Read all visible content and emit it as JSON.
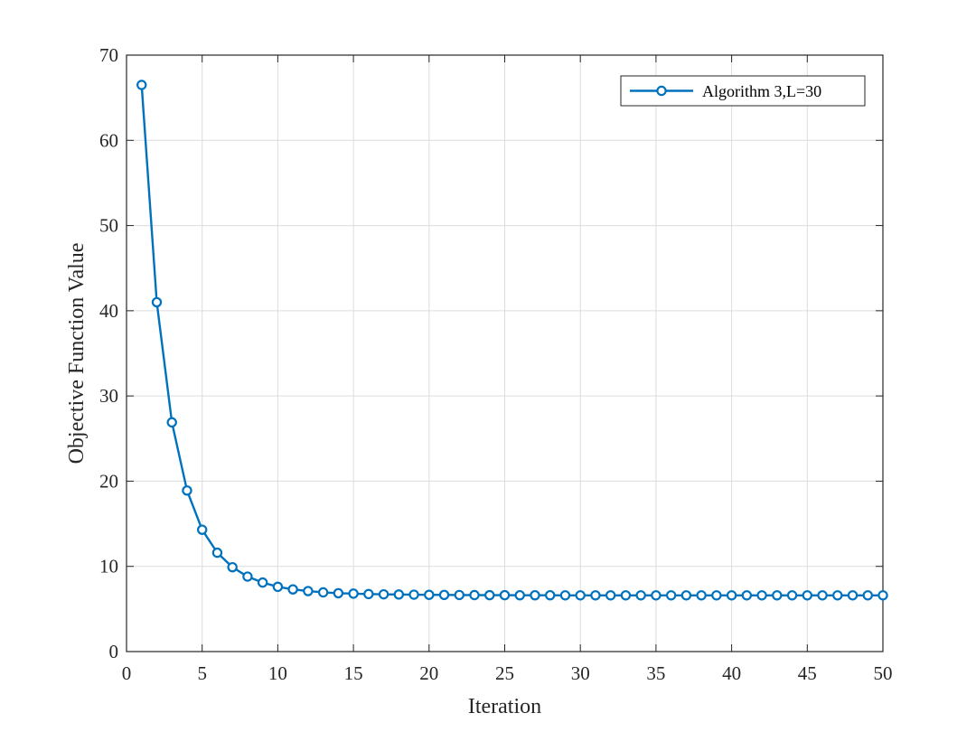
{
  "chart_data": {
    "type": "line",
    "xlabel": "Iteration",
    "ylabel": "Objective Function Value",
    "xlim": [
      0,
      50
    ],
    "ylim": [
      0,
      70
    ],
    "xticks": [
      0,
      5,
      10,
      15,
      20,
      25,
      30,
      35,
      40,
      45,
      50
    ],
    "yticks": [
      0,
      10,
      20,
      30,
      40,
      50,
      60,
      70
    ],
    "grid": true,
    "legend_position": "top-right",
    "series": [
      {
        "name": "Algorithm 3,L=30",
        "color": "#0072BD",
        "marker": "circle",
        "x": [
          1,
          2,
          3,
          4,
          5,
          6,
          7,
          8,
          9,
          10,
          11,
          12,
          13,
          14,
          15,
          16,
          17,
          18,
          19,
          20,
          21,
          22,
          23,
          24,
          25,
          26,
          27,
          28,
          29,
          30,
          31,
          32,
          33,
          34,
          35,
          36,
          37,
          38,
          39,
          40,
          41,
          42,
          43,
          44,
          45,
          46,
          47,
          48,
          49,
          50
        ],
        "values": [
          66.5,
          41.0,
          26.9,
          18.9,
          14.3,
          11.6,
          9.9,
          8.8,
          8.1,
          7.6,
          7.3,
          7.1,
          6.95,
          6.85,
          6.8,
          6.75,
          6.72,
          6.7,
          6.68,
          6.66,
          6.65,
          6.64,
          6.63,
          6.62,
          6.62,
          6.61,
          6.61,
          6.61,
          6.6,
          6.6,
          6.6,
          6.6,
          6.6,
          6.6,
          6.6,
          6.6,
          6.6,
          6.6,
          6.6,
          6.6,
          6.6,
          6.6,
          6.6,
          6.6,
          6.6,
          6.6,
          6.6,
          6.6,
          6.6,
          6.6
        ]
      }
    ]
  }
}
